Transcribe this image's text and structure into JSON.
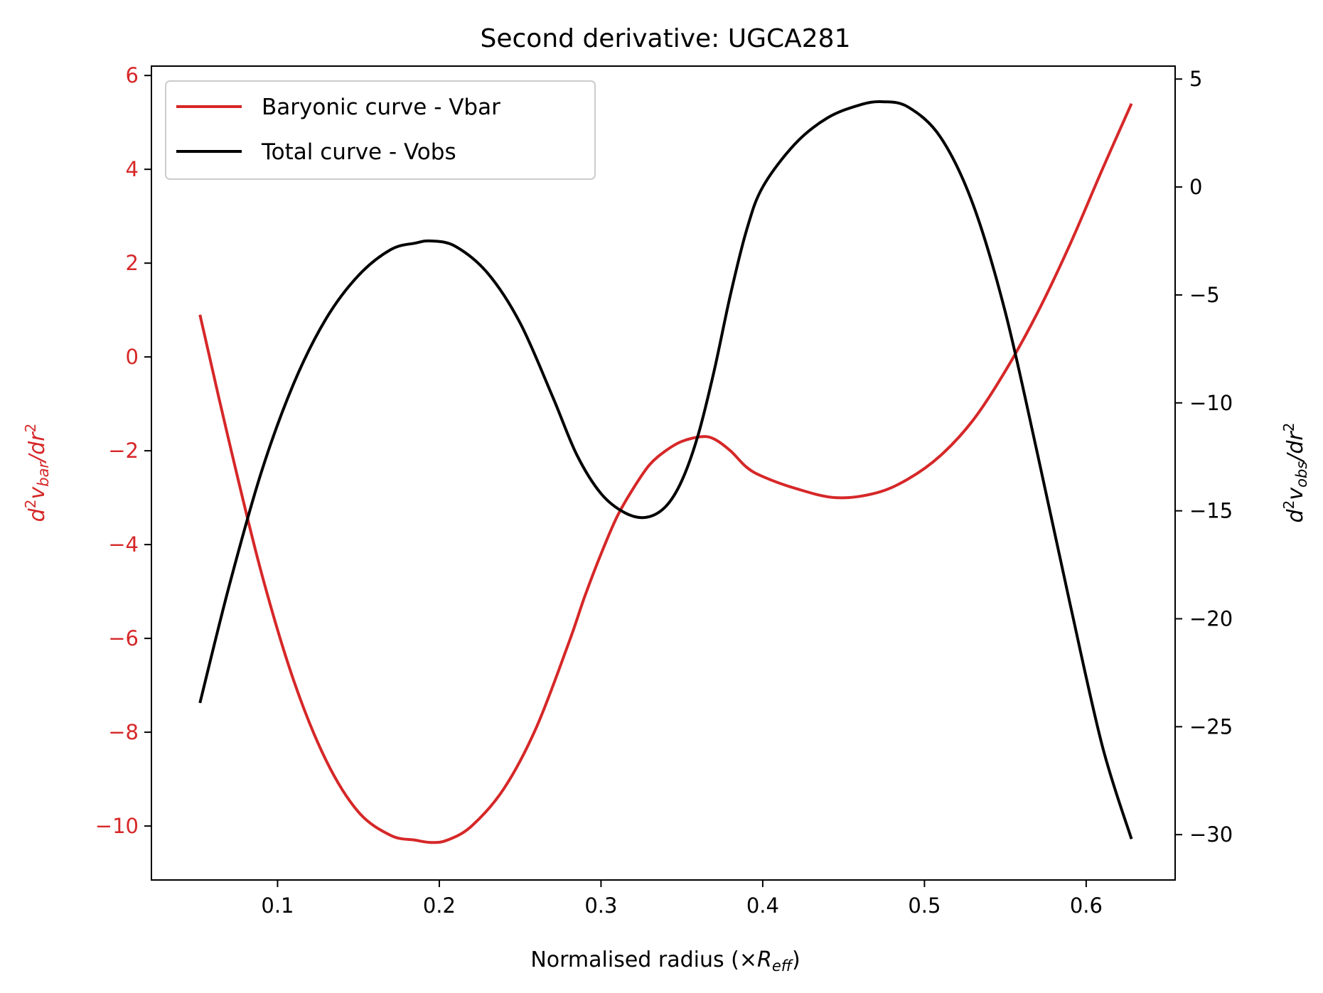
{
  "chart_data": {
    "type": "line",
    "title": "Second derivative: UGCA281",
    "xlabel": {
      "main": "Normalised radius (×",
      "var": "R",
      "sub": "eff",
      "close": ")"
    },
    "ylabel_left": {
      "d": "d",
      "sup1": "2",
      "v": "v",
      "sub": "bar",
      "slash": "/",
      "dr": "dr",
      "sup2": "2"
    },
    "ylabel_right": {
      "d": "d",
      "sup1": "2",
      "v": "v",
      "sub": "obs",
      "slash": "/",
      "dr": "dr",
      "sup2": "2"
    },
    "xlim": [
      0.022,
      0.655
    ],
    "ylim_left": [
      -11.15,
      6.2
    ],
    "ylim_right": [
      -32.1,
      5.6
    ],
    "x_ticks": [
      {
        "value": 0.1,
        "label": "0.1"
      },
      {
        "value": 0.2,
        "label": "0.2"
      },
      {
        "value": 0.3,
        "label": "0.3"
      },
      {
        "value": 0.4,
        "label": "0.4"
      },
      {
        "value": 0.5,
        "label": "0.5"
      },
      {
        "value": 0.6,
        "label": "0.6"
      }
    ],
    "y_left_ticks": [
      {
        "value": 6,
        "label": "6"
      },
      {
        "value": 4,
        "label": "4"
      },
      {
        "value": 2,
        "label": "2"
      },
      {
        "value": 0,
        "label": "0"
      },
      {
        "value": -2,
        "label": "−2"
      },
      {
        "value": -4,
        "label": "−4"
      },
      {
        "value": -6,
        "label": "−6"
      },
      {
        "value": -8,
        "label": "−8"
      },
      {
        "value": -10,
        "label": "−10"
      }
    ],
    "y_right_ticks": [
      {
        "value": 5,
        "label": "5"
      },
      {
        "value": 0,
        "label": "0"
      },
      {
        "value": -5,
        "label": "−5"
      },
      {
        "value": -10,
        "label": "−10"
      },
      {
        "value": -15,
        "label": "−15"
      },
      {
        "value": -20,
        "label": "−20"
      },
      {
        "value": -25,
        "label": "−25"
      },
      {
        "value": -30,
        "label": "−30"
      }
    ],
    "legend": {
      "placement": "top-left"
    },
    "series": [
      {
        "name": "Baryonic curve - Vbar",
        "color": "#d62728",
        "axis": "left",
        "x": [
          0.052,
          0.07,
          0.09,
          0.11,
          0.13,
          0.15,
          0.17,
          0.185,
          0.195,
          0.205,
          0.22,
          0.24,
          0.26,
          0.28,
          0.29,
          0.3,
          0.31,
          0.32,
          0.33,
          0.34,
          0.35,
          0.362,
          0.37,
          0.38,
          0.39,
          0.4,
          0.42,
          0.445,
          0.47,
          0.49,
          0.51,
          0.53,
          0.55,
          0.57,
          0.59,
          0.61,
          0.628
        ],
        "y": [
          0.9,
          -1.8,
          -4.6,
          -6.9,
          -8.6,
          -9.7,
          -10.2,
          -10.3,
          -10.35,
          -10.3,
          -10.0,
          -9.2,
          -7.9,
          -6.1,
          -5.1,
          -4.2,
          -3.4,
          -2.8,
          -2.3,
          -2.0,
          -1.8,
          -1.7,
          -1.75,
          -2.0,
          -2.35,
          -2.55,
          -2.8,
          -3.0,
          -2.9,
          -2.6,
          -2.1,
          -1.35,
          -0.3,
          0.95,
          2.4,
          4.0,
          5.4
        ]
      },
      {
        "name": "Total curve - Vobs",
        "color": "#000000",
        "axis": "right",
        "x": [
          0.052,
          0.07,
          0.09,
          0.11,
          0.13,
          0.15,
          0.17,
          0.185,
          0.195,
          0.21,
          0.23,
          0.25,
          0.27,
          0.285,
          0.3,
          0.315,
          0.328,
          0.34,
          0.35,
          0.36,
          0.37,
          0.38,
          0.39,
          0.4,
          0.42,
          0.44,
          0.46,
          0.474,
          0.49,
          0.51,
          0.53,
          0.55,
          0.57,
          0.59,
          0.61,
          0.628
        ],
        "y": [
          -23.9,
          -18.5,
          -13.2,
          -9.1,
          -6.1,
          -4.1,
          -2.9,
          -2.6,
          -2.5,
          -2.75,
          -4.0,
          -6.3,
          -9.7,
          -12.4,
          -14.2,
          -15.1,
          -15.3,
          -14.8,
          -13.6,
          -11.5,
          -8.5,
          -5.0,
          -2.0,
          0.0,
          2.0,
          3.2,
          3.8,
          3.95,
          3.7,
          2.3,
          -0.8,
          -5.8,
          -12.4,
          -19.3,
          -25.9,
          -30.2
        ]
      }
    ]
  }
}
